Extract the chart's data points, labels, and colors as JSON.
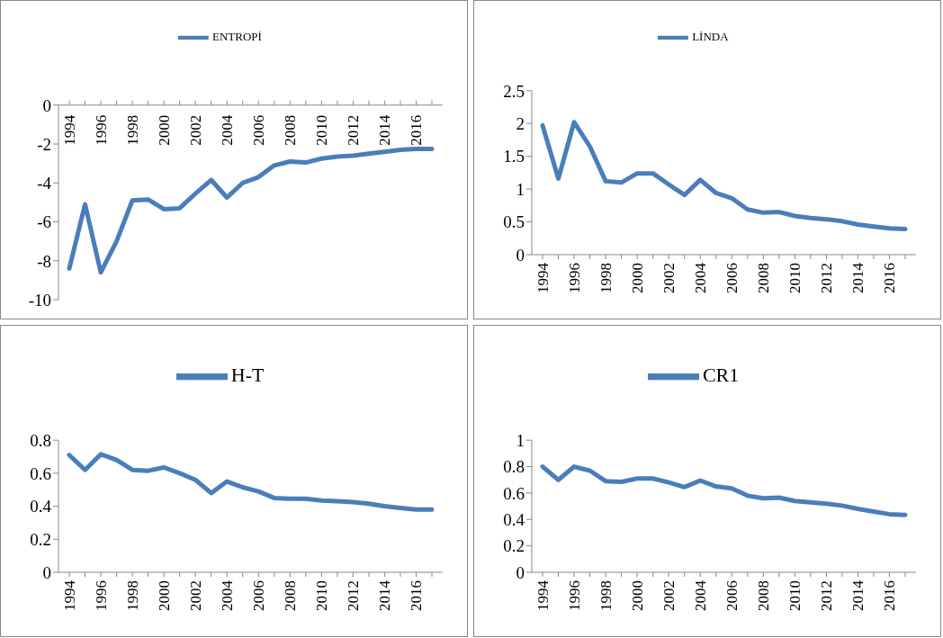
{
  "chart_data": [
    {
      "type": "line",
      "categories": [
        "1994",
        null,
        "1996",
        null,
        "1998",
        null,
        "2000",
        null,
        "2002",
        null,
        "2004",
        null,
        "2006",
        null,
        "2008",
        null,
        "2010",
        null,
        "2012",
        null,
        "2014",
        null,
        "2016",
        null
      ],
      "series": [
        {
          "name": "ENTROPİ",
          "color": "#4a7ebb",
          "values": [
            -8.4,
            -5.1,
            -8.6,
            -7.0,
            -4.9,
            -4.85,
            -5.35,
            -5.3,
            -4.55,
            -3.85,
            -4.75,
            -4.0,
            -3.7,
            -3.1,
            -2.9,
            -2.95,
            -2.75,
            -2.65,
            -2.6,
            -2.5,
            -2.4,
            -2.3,
            -2.25,
            -2.25
          ]
        }
      ],
      "ylim": [
        -10,
        0
      ],
      "yticks": [
        -10,
        -8,
        -6,
        -4,
        -2,
        0
      ],
      "grid": false,
      "legend": "top",
      "marker": "none"
    },
    {
      "type": "line",
      "categories": [
        "1994",
        null,
        "1996",
        null,
        "1998",
        null,
        "2000",
        null,
        "2002",
        null,
        "2004",
        null,
        "2006",
        null,
        "2008",
        null,
        "2010",
        null,
        "2012",
        null,
        "2014",
        null,
        "2016",
        null
      ],
      "series": [
        {
          "name": "LİNDA",
          "color": "#4a7ebb",
          "values": [
            1.97,
            1.16,
            2.02,
            1.65,
            1.12,
            1.1,
            1.24,
            1.24,
            1.07,
            0.91,
            1.14,
            0.94,
            0.86,
            0.69,
            0.64,
            0.65,
            0.59,
            0.56,
            0.54,
            0.51,
            0.46,
            0.43,
            0.4,
            0.39
          ]
        }
      ],
      "ylim": [
        0,
        2.5
      ],
      "yticks": [
        0,
        0.5,
        1,
        1.5,
        2,
        2.5
      ],
      "grid": false,
      "legend": "top",
      "marker": "none"
    },
    {
      "type": "line",
      "categories": [
        "1994",
        null,
        "1996",
        null,
        "1998",
        null,
        "2000",
        null,
        "2002",
        null,
        "2004",
        null,
        "2006",
        null,
        "2008",
        null,
        "2010",
        null,
        "2012",
        null,
        "2014",
        null,
        "2016",
        null
      ],
      "series": [
        {
          "name": "H-T",
          "color": "#4a7ebb",
          "values": [
            0.71,
            0.62,
            0.715,
            0.68,
            0.62,
            0.615,
            0.635,
            0.6,
            0.56,
            0.48,
            0.55,
            0.515,
            0.49,
            0.45,
            0.445,
            0.445,
            0.435,
            0.43,
            0.425,
            0.415,
            0.4,
            0.39,
            0.38,
            0.38
          ]
        }
      ],
      "ylim": [
        0,
        0.8
      ],
      "yticks": [
        0,
        0.2,
        0.4,
        0.6,
        0.8
      ],
      "grid": false,
      "legend": "top",
      "marker": "none"
    },
    {
      "type": "line",
      "categories": [
        "1994",
        null,
        "1996",
        null,
        "1998",
        null,
        "2000",
        null,
        "2002",
        null,
        "2004",
        null,
        "2006",
        null,
        "2008",
        null,
        "2010",
        null,
        "2012",
        null,
        "2014",
        null,
        "2016",
        null
      ],
      "series": [
        {
          "name": "CR1",
          "color": "#4a7ebb",
          "values": [
            0.8,
            0.7,
            0.8,
            0.77,
            0.69,
            0.685,
            0.71,
            0.71,
            0.68,
            0.645,
            0.695,
            0.65,
            0.635,
            0.58,
            0.56,
            0.565,
            0.54,
            0.53,
            0.52,
            0.505,
            0.48,
            0.46,
            0.44,
            0.435
          ]
        }
      ],
      "ylim": [
        0,
        1
      ],
      "yticks": [
        0,
        0.2,
        0.4,
        0.6,
        0.8,
        1
      ],
      "grid": false,
      "legend": "top",
      "marker": "none"
    }
  ]
}
